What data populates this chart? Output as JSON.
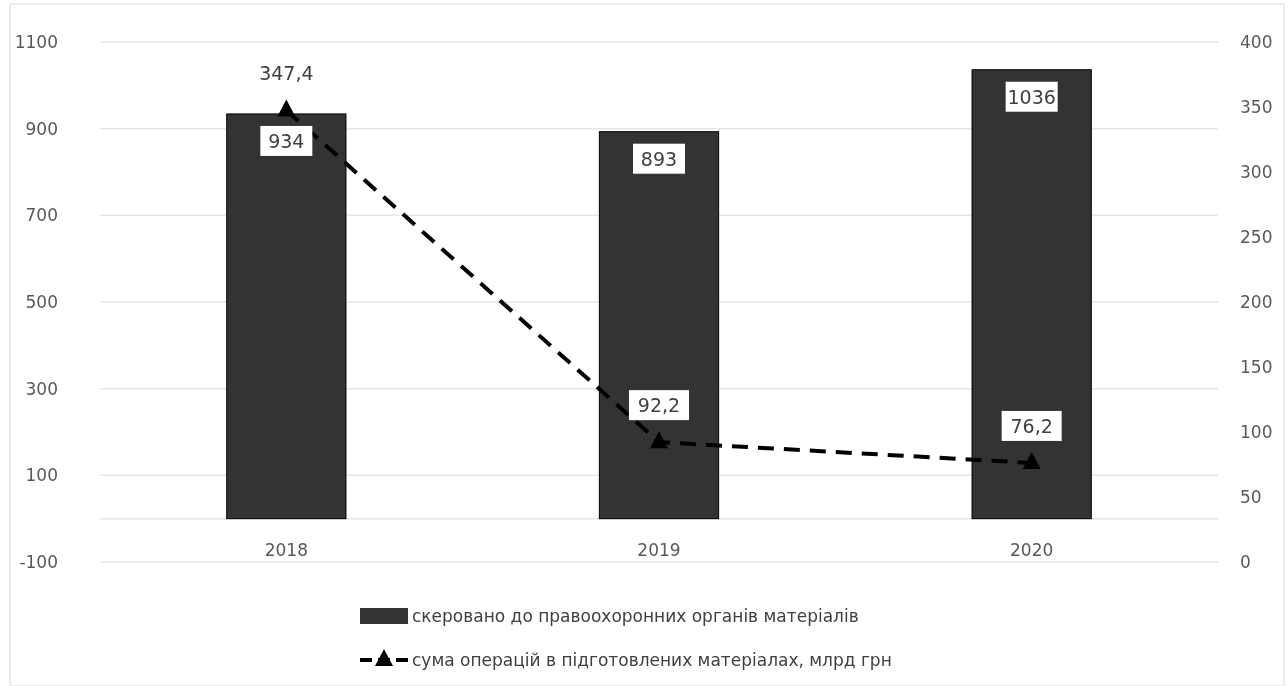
{
  "chart_data": {
    "type": "bar",
    "categories": [
      "2018",
      "2019",
      "2020"
    ],
    "series": [
      {
        "name": "скеровано до правоохоронних органів матеріалів",
        "color": "#333333",
        "values": [
          934,
          893,
          1036
        ],
        "value_labels": [
          "934",
          "893",
          "1036"
        ]
      },
      {
        "name": "сума операцій в підготовлених матеріалах, млрд грн",
        "type": "line",
        "axis": "y2",
        "color": "#000000",
        "values": [
          347.4,
          92.2,
          76.2
        ],
        "value_labels": [
          "347,4",
          "92,2",
          "76,2"
        ],
        "marker": "triangle",
        "line_style": "dashed"
      }
    ],
    "ylim": [
      -100,
      1100
    ],
    "yticks": [
      -100,
      100,
      300,
      500,
      700,
      900,
      1100
    ],
    "y2lim": [
      0,
      400
    ],
    "y2ticks": [
      0,
      50,
      100,
      150,
      200,
      250,
      300,
      350,
      400
    ],
    "grid": "y",
    "legend": "bottom"
  }
}
